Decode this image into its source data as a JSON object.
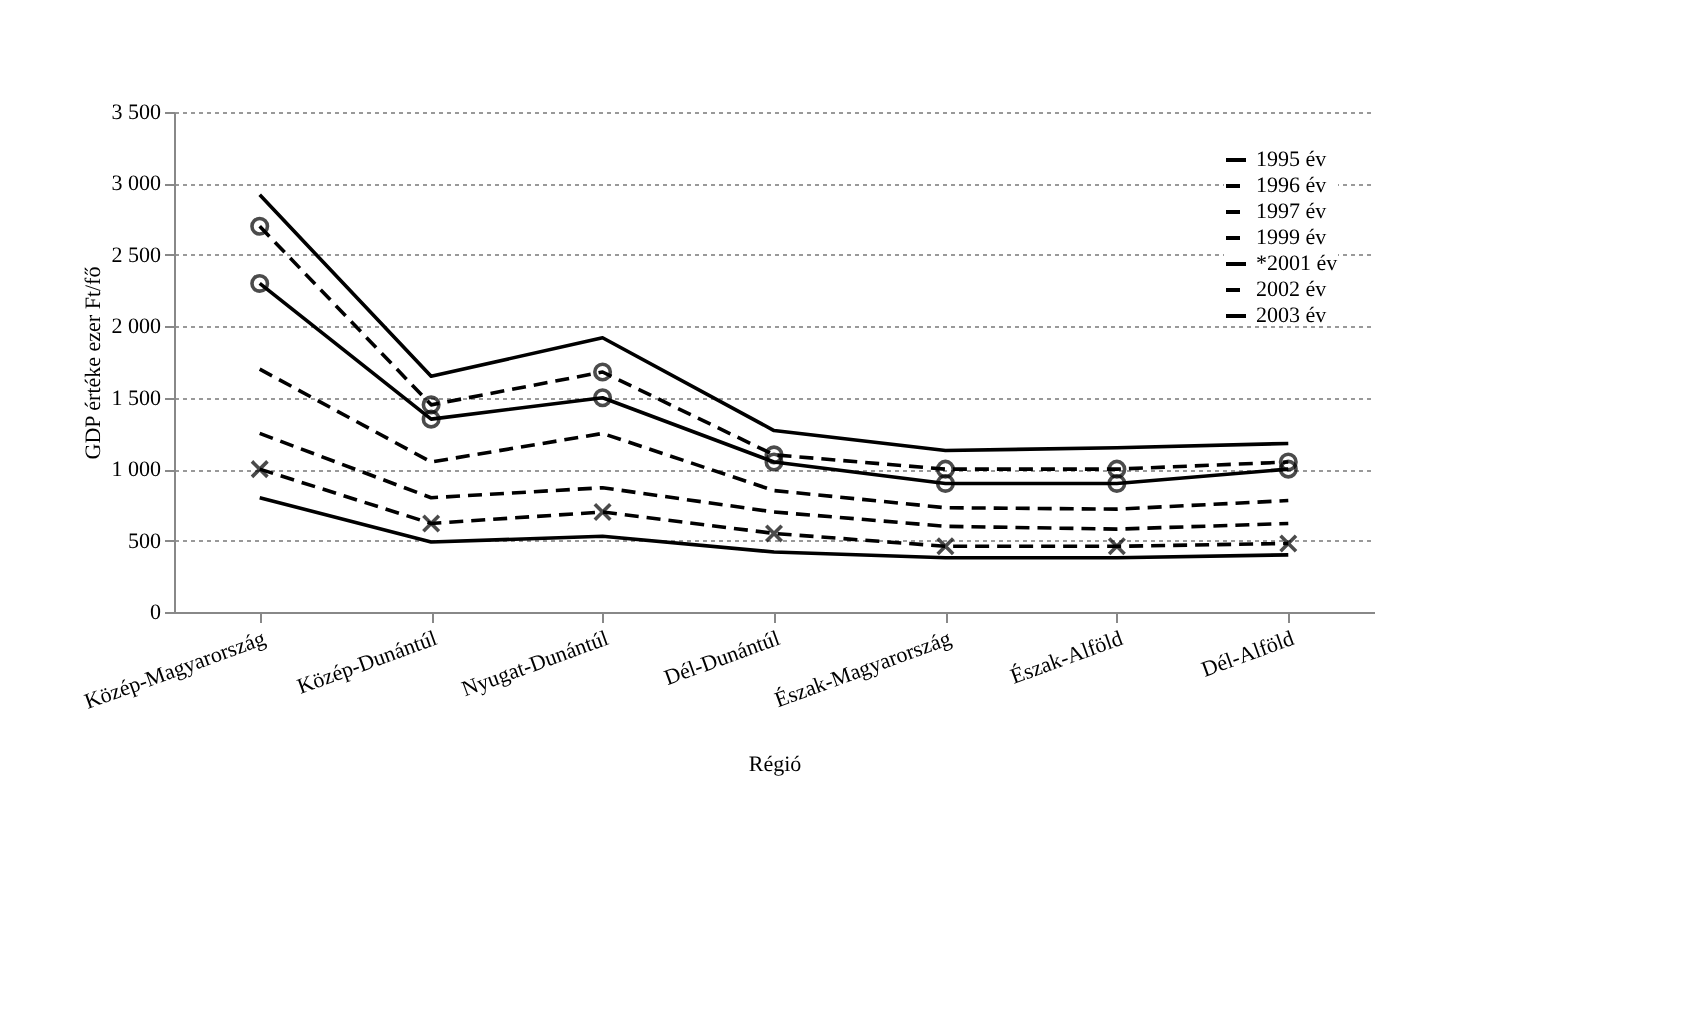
{
  "chart_data": {
    "type": "line",
    "xlabel": "Régió",
    "ylabel": "GDP értéke ezer Ft/fő",
    "categories": [
      "Közép-Magyarország",
      "Közép-Dunántúl",
      "Nyugat-Dunántúl",
      "Dél-Dunántúl",
      "Észak-Magyarország",
      "Észak-Alföld",
      "Dél-Alföld"
    ],
    "series": [
      {
        "name": "1995 év",
        "color": "#000000",
        "line_style": "solid",
        "marker": "none",
        "values": [
          800,
          490,
          530,
          420,
          380,
          380,
          400
        ]
      },
      {
        "name": "1996 év",
        "color": "#000000",
        "line_style": "dashed",
        "marker": "cross",
        "values": [
          1000,
          620,
          700,
          550,
          460,
          460,
          480
        ]
      },
      {
        "name": "1997 év",
        "color": "#000000",
        "line_style": "dashed",
        "marker": "none",
        "values": [
          1250,
          800,
          870,
          700,
          600,
          580,
          620
        ]
      },
      {
        "name": "1999 év",
        "color": "#000000",
        "line_style": "dashed",
        "marker": "none",
        "values": [
          1700,
          1050,
          1250,
          850,
          730,
          720,
          780
        ]
      },
      {
        "name": "*2001 év",
        "color": "#000000",
        "line_style": "solid",
        "marker": "circle",
        "values": [
          2300,
          1350,
          1500,
          1050,
          900,
          900,
          1000
        ]
      },
      {
        "name": "2002 év",
        "color": "#000000",
        "line_style": "dashed",
        "marker": "circle",
        "values": [
          2700,
          1450,
          1680,
          1100,
          1000,
          1000,
          1050
        ]
      },
      {
        "name": "2003 év",
        "color": "#000000",
        "line_style": "solid",
        "marker": "none",
        "values": [
          2920,
          1650,
          1920,
          1270,
          1130,
          1150,
          1180
        ]
      }
    ],
    "ylim": [
      0,
      3500
    ],
    "yticks": [
      0,
      {
        "value": 500,
        "label": "500"
      },
      {
        "value": 1000,
        "label": "1 000"
      },
      {
        "value": 1500,
        "label": "1 500"
      },
      {
        "value": 2000,
        "label": "2 000"
      },
      {
        "value": 2500,
        "label": "2 500"
      },
      {
        "value": 3000,
        "label": "3 000"
      },
      {
        "value": 3500,
        "label": "3 500"
      }
    ],
    "grid": "y",
    "legend": "top right"
  }
}
